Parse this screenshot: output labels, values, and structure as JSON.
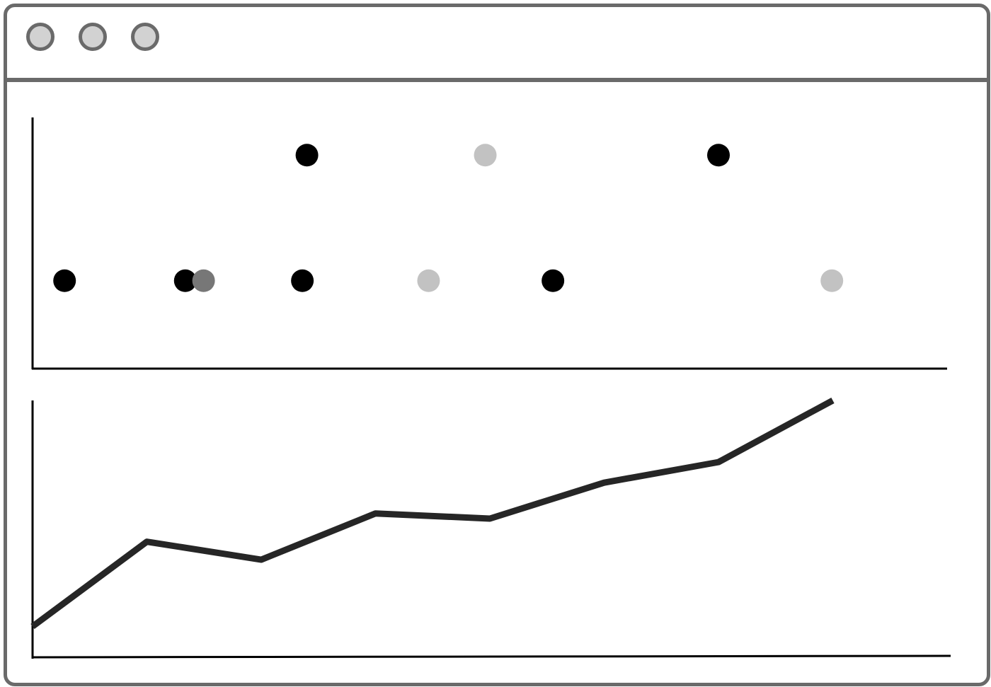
{
  "window": {
    "buttons": [
      "close-button",
      "minimize-button",
      "maximize-button"
    ],
    "button_fill": "#d2d2d2",
    "frame_color": "#6a6a6a"
  },
  "chart_data": [
    {
      "type": "scatter",
      "title": "",
      "xlabel": "",
      "ylabel": "",
      "xlim": [
        0,
        100
      ],
      "ylim": [
        0,
        100
      ],
      "grid": false,
      "legend": "none",
      "points": [
        {
          "x": 3.5,
          "y": 35,
          "color": "#000000"
        },
        {
          "x": 16.7,
          "y": 35,
          "color": "#000000"
        },
        {
          "x": 18.7,
          "y": 35,
          "color": "#777777"
        },
        {
          "x": 29.5,
          "y": 35,
          "color": "#000000"
        },
        {
          "x": 30,
          "y": 85,
          "color": "#000000"
        },
        {
          "x": 43.3,
          "y": 35,
          "color": "#c2c2c2"
        },
        {
          "x": 49.5,
          "y": 85,
          "color": "#c2c2c2"
        },
        {
          "x": 56.9,
          "y": 35,
          "color": "#000000"
        },
        {
          "x": 75,
          "y": 85,
          "color": "#000000"
        },
        {
          "x": 87.4,
          "y": 35,
          "color": "#c2c2c2"
        }
      ]
    },
    {
      "type": "line",
      "title": "",
      "xlabel": "",
      "ylabel": "",
      "xlim": [
        0,
        100
      ],
      "ylim": [
        0,
        100
      ],
      "grid": false,
      "legend": "none",
      "line_color": "#262626",
      "x": [
        0,
        12.5,
        25,
        37.5,
        50,
        62.5,
        75,
        87.5
      ],
      "values": [
        12,
        45,
        38,
        56,
        54,
        68,
        76,
        100
      ]
    }
  ]
}
